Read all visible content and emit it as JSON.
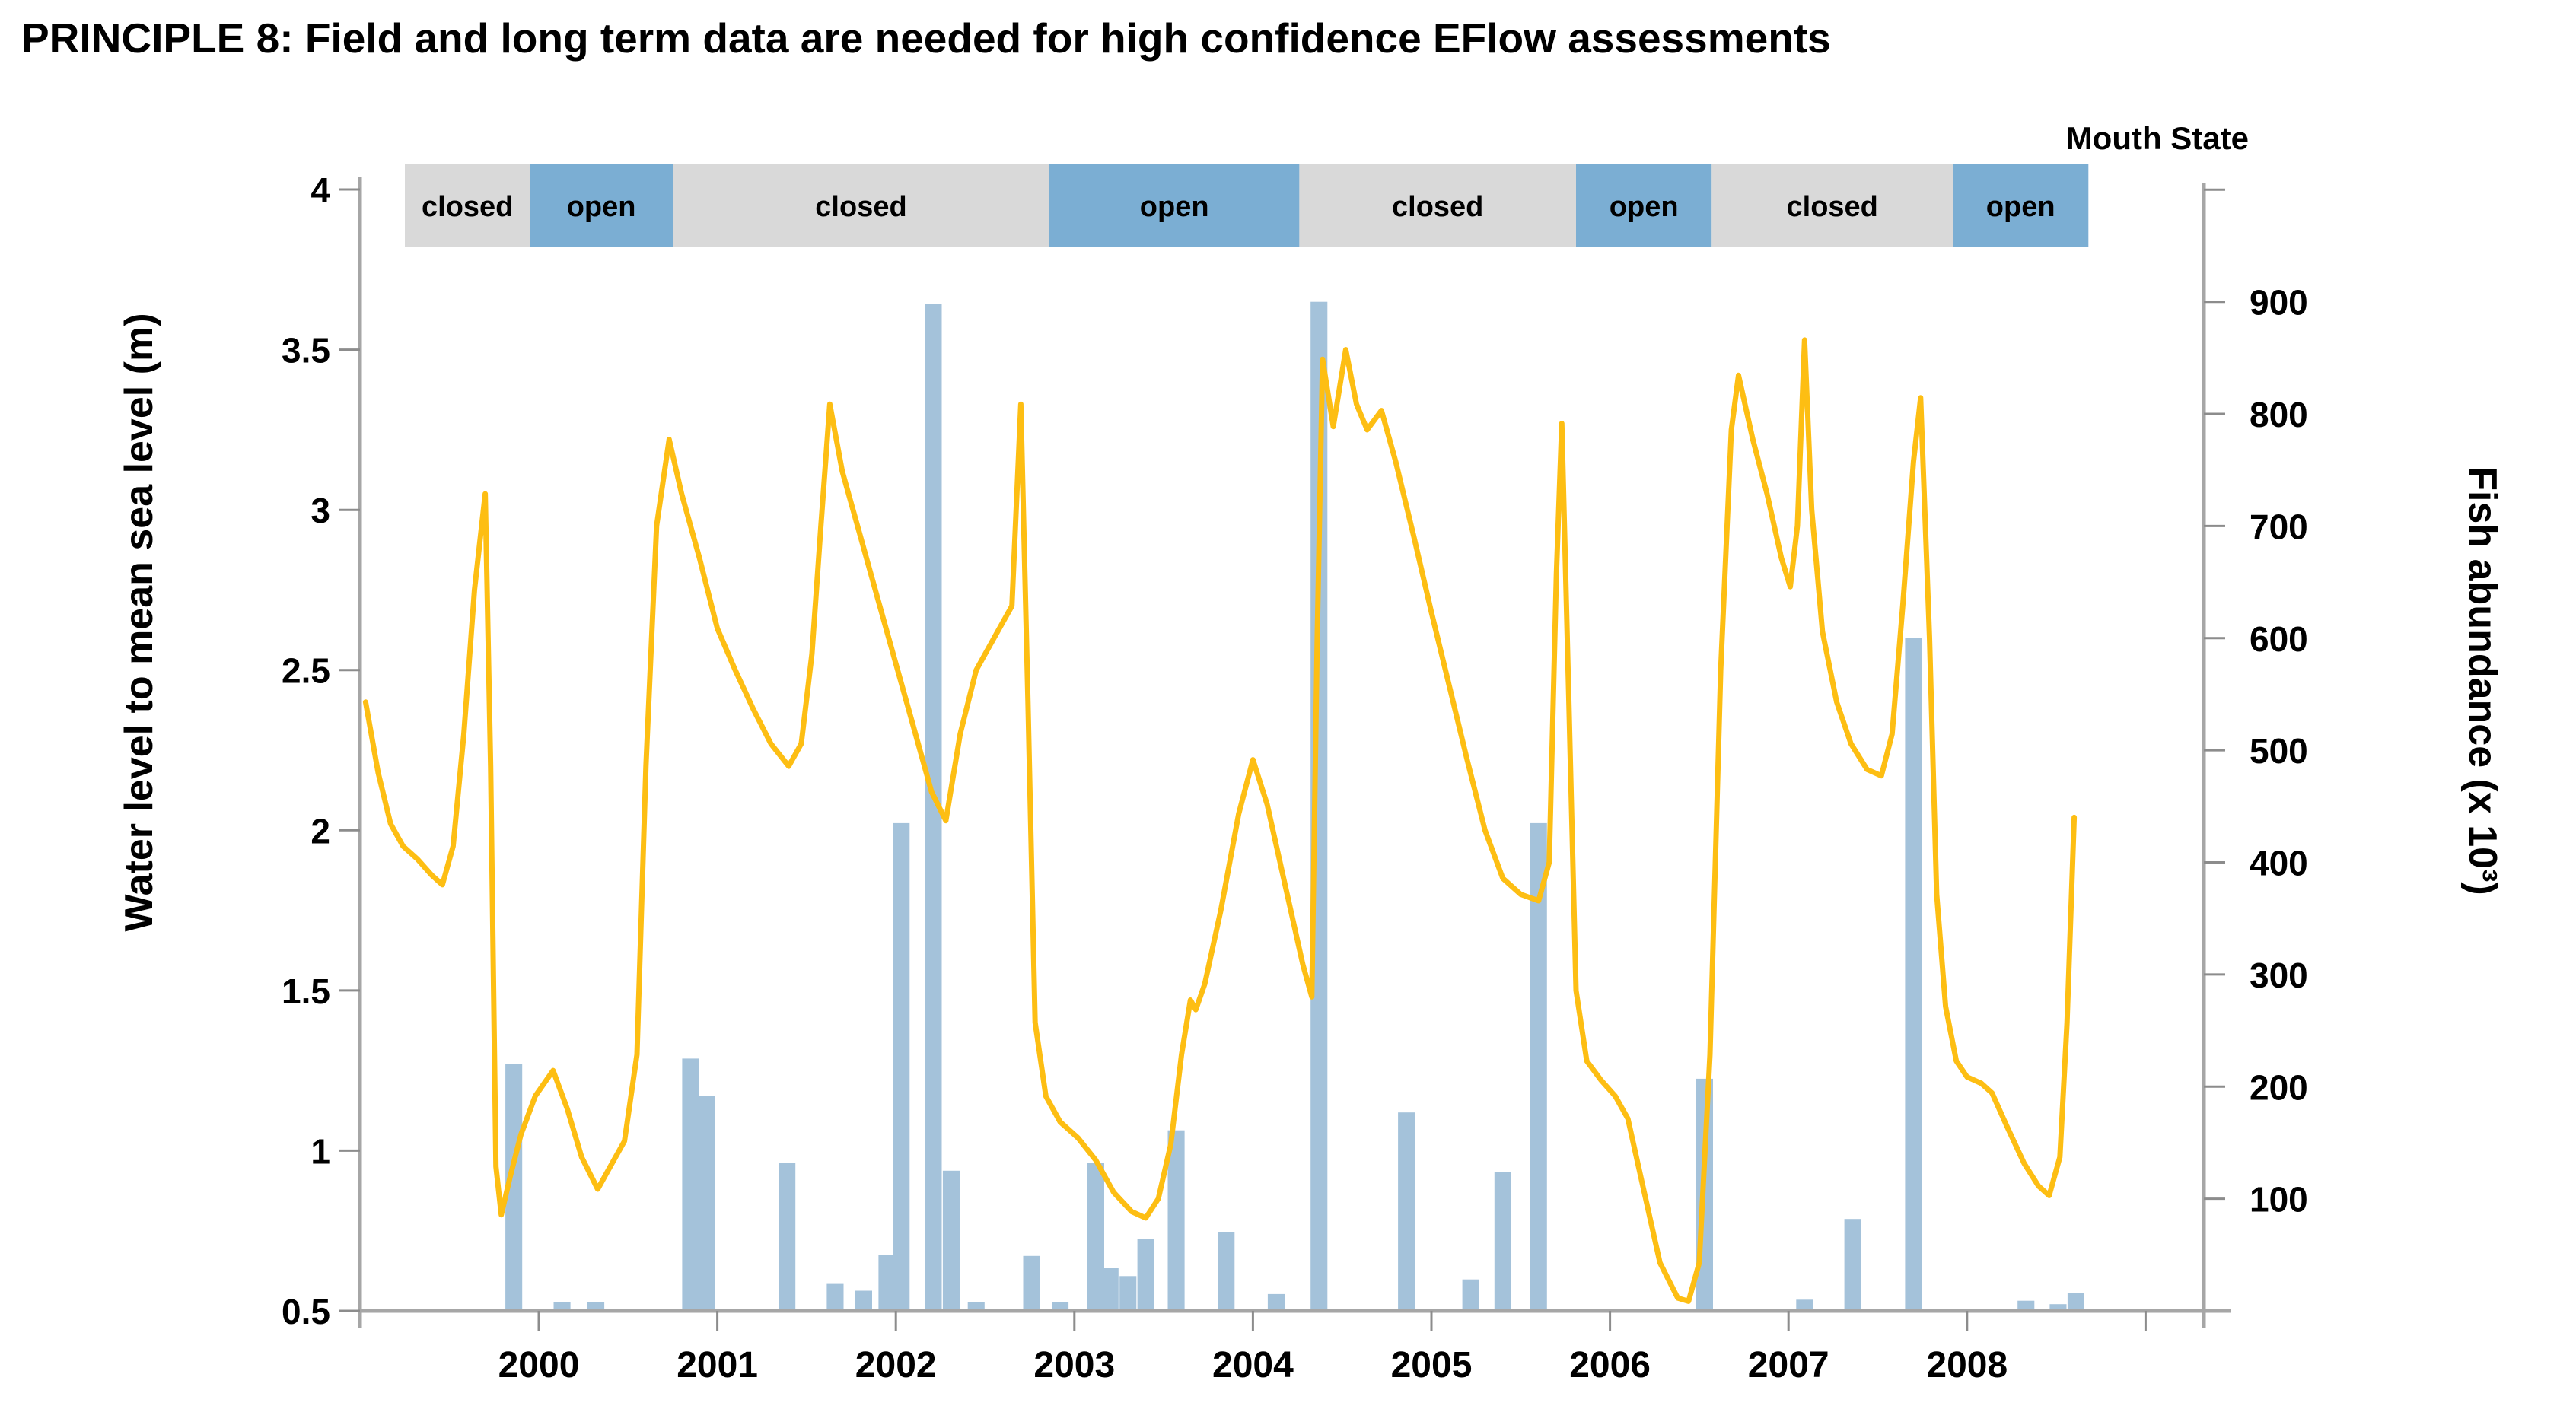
{
  "title": "PRINCIPLE 8: Field and long term data are needed for high confidence EFlow assessments",
  "mouth_state": {
    "label": "Mouth State",
    "segments": [
      {
        "state": "closed",
        "label": "closed",
        "from": 1999.25,
        "to": 1999.95
      },
      {
        "state": "open",
        "label": "open",
        "from": 1999.95,
        "to": 2000.75
      },
      {
        "state": "closed",
        "label": "closed",
        "from": 2000.75,
        "to": 2002.86
      },
      {
        "state": "open",
        "label": "open",
        "from": 2002.86,
        "to": 2004.26
      },
      {
        "state": "closed",
        "label": "closed",
        "from": 2004.26,
        "to": 2005.81
      },
      {
        "state": "open",
        "label": "open",
        "from": 2005.81,
        "to": 2006.57
      },
      {
        "state": "closed",
        "label": "closed",
        "from": 2006.57,
        "to": 2007.92
      },
      {
        "state": "open",
        "label": "open",
        "from": 2007.92,
        "to": 2008.68
      }
    ]
  },
  "chart_data": {
    "type": "line+bar",
    "title": "",
    "grid": false,
    "legend": "none",
    "x_axis": {
      "range": [
        1999.0,
        2009.35
      ],
      "ticks": [
        {
          "year": 2000,
          "label": "2000"
        },
        {
          "year": 2001,
          "label": "2001"
        },
        {
          "year": 2002,
          "label": "2002"
        },
        {
          "year": 2003,
          "label": "2003"
        },
        {
          "year": 2004,
          "label": "2004"
        },
        {
          "year": 2005,
          "label": "2005"
        },
        {
          "year": 2006,
          "label": "2006"
        },
        {
          "year": 2007,
          "label": "2007"
        },
        {
          "year": 2008,
          "label": "2008"
        },
        {
          "year": 2009,
          "label": ""
        }
      ]
    },
    "left_axis": {
      "label": "Water level to mean sea level (m)",
      "min": 0.5,
      "max": 4.0,
      "ticks": [
        {
          "v": 4,
          "label": "4"
        },
        {
          "v": 3.5,
          "label": "3.5"
        },
        {
          "v": 3,
          "label": "3"
        },
        {
          "v": 2.5,
          "label": "2.5"
        },
        {
          "v": 2,
          "label": "2"
        },
        {
          "v": 1.5,
          "label": "1.5"
        },
        {
          "v": 1,
          "label": "1"
        },
        {
          "v": 0.5,
          "label": "0.5"
        }
      ]
    },
    "right_axis": {
      "label": "Fish abundance (x 10³)",
      "min": 0,
      "max": 1000,
      "ticks": [
        {
          "v": 1000,
          "label": ""
        },
        {
          "v": 900,
          "label": "900"
        },
        {
          "v": 800,
          "label": "800"
        },
        {
          "v": 700,
          "label": "700"
        },
        {
          "v": 600,
          "label": "600"
        },
        {
          "v": 500,
          "label": "500"
        },
        {
          "v": 400,
          "label": "400"
        },
        {
          "v": 300,
          "label": "300"
        },
        {
          "v": 200,
          "label": "200"
        },
        {
          "v": 100,
          "label": "100"
        }
      ]
    },
    "series": [
      {
        "name": "Water level to mean sea level",
        "type": "line",
        "axis": "left",
        "color": "#FDBE13",
        "points": [
          [
            1999.03,
            2.4
          ],
          [
            1999.1,
            2.18
          ],
          [
            1999.17,
            2.02
          ],
          [
            1999.24,
            1.95
          ],
          [
            1999.32,
            1.91
          ],
          [
            1999.4,
            1.86
          ],
          [
            1999.46,
            1.83
          ],
          [
            1999.52,
            1.95
          ],
          [
            1999.58,
            2.3
          ],
          [
            1999.64,
            2.75
          ],
          [
            1999.7,
            3.05
          ],
          [
            1999.73,
            2.2
          ],
          [
            1999.76,
            0.95
          ],
          [
            1999.79,
            0.8
          ],
          [
            1999.84,
            0.92
          ],
          [
            1999.9,
            1.05
          ],
          [
            1999.98,
            1.17
          ],
          [
            2000.08,
            1.25
          ],
          [
            2000.16,
            1.13
          ],
          [
            2000.24,
            0.98
          ],
          [
            2000.33,
            0.88
          ],
          [
            2000.4,
            0.95
          ],
          [
            2000.48,
            1.03
          ],
          [
            2000.55,
            1.3
          ],
          [
            2000.6,
            2.2
          ],
          [
            2000.66,
            2.95
          ],
          [
            2000.73,
            3.22
          ],
          [
            2000.8,
            3.05
          ],
          [
            2000.9,
            2.85
          ],
          [
            2001.0,
            2.63
          ],
          [
            2001.1,
            2.5
          ],
          [
            2001.2,
            2.38
          ],
          [
            2001.3,
            2.27
          ],
          [
            2001.4,
            2.2
          ],
          [
            2001.47,
            2.27
          ],
          [
            2001.53,
            2.55
          ],
          [
            2001.58,
            2.95
          ],
          [
            2001.63,
            3.33
          ],
          [
            2001.7,
            3.12
          ],
          [
            2001.8,
            2.92
          ],
          [
            2001.9,
            2.72
          ],
          [
            2002.0,
            2.52
          ],
          [
            2002.1,
            2.32
          ],
          [
            2002.2,
            2.12
          ],
          [
            2002.28,
            2.03
          ],
          [
            2002.36,
            2.3
          ],
          [
            2002.45,
            2.5
          ],
          [
            2002.55,
            2.6
          ],
          [
            2002.65,
            2.7
          ],
          [
            2002.7,
            3.33
          ],
          [
            2002.74,
            2.4
          ],
          [
            2002.78,
            1.4
          ],
          [
            2002.84,
            1.17
          ],
          [
            2002.92,
            1.09
          ],
          [
            2003.02,
            1.04
          ],
          [
            2003.12,
            0.97
          ],
          [
            2003.22,
            0.87
          ],
          [
            2003.32,
            0.81
          ],
          [
            2003.4,
            0.79
          ],
          [
            2003.47,
            0.85
          ],
          [
            2003.54,
            1.02
          ],
          [
            2003.6,
            1.3
          ],
          [
            2003.65,
            1.47
          ],
          [
            2003.68,
            1.44
          ],
          [
            2003.73,
            1.52
          ],
          [
            2003.82,
            1.75
          ],
          [
            2003.92,
            2.05
          ],
          [
            2004.0,
            2.22
          ],
          [
            2004.08,
            2.08
          ],
          [
            2004.18,
            1.83
          ],
          [
            2004.28,
            1.58
          ],
          [
            2004.33,
            1.48
          ],
          [
            2004.36,
            2.6
          ],
          [
            2004.39,
            3.47
          ],
          [
            2004.45,
            3.26
          ],
          [
            2004.52,
            3.5
          ],
          [
            2004.58,
            3.33
          ],
          [
            2004.64,
            3.25
          ],
          [
            2004.72,
            3.31
          ],
          [
            2004.8,
            3.15
          ],
          [
            2004.9,
            2.92
          ],
          [
            2005.0,
            2.68
          ],
          [
            2005.1,
            2.45
          ],
          [
            2005.2,
            2.22
          ],
          [
            2005.3,
            2.0
          ],
          [
            2005.4,
            1.85
          ],
          [
            2005.5,
            1.8
          ],
          [
            2005.6,
            1.78
          ],
          [
            2005.66,
            1.9
          ],
          [
            2005.7,
            2.8
          ],
          [
            2005.73,
            3.27
          ],
          [
            2005.77,
            2.4
          ],
          [
            2005.81,
            1.5
          ],
          [
            2005.87,
            1.28
          ],
          [
            2005.95,
            1.22
          ],
          [
            2006.03,
            1.17
          ],
          [
            2006.1,
            1.1
          ],
          [
            2006.18,
            0.9
          ],
          [
            2006.28,
            0.65
          ],
          [
            2006.38,
            0.54
          ],
          [
            2006.44,
            0.53
          ],
          [
            2006.5,
            0.65
          ],
          [
            2006.56,
            1.3
          ],
          [
            2006.62,
            2.5
          ],
          [
            2006.68,
            3.25
          ],
          [
            2006.72,
            3.42
          ],
          [
            2006.8,
            3.22
          ],
          [
            2006.88,
            3.05
          ],
          [
            2006.96,
            2.85
          ],
          [
            2007.01,
            2.76
          ],
          [
            2007.05,
            2.95
          ],
          [
            2007.09,
            3.53
          ],
          [
            2007.13,
            3.0
          ],
          [
            2007.19,
            2.62
          ],
          [
            2007.27,
            2.4
          ],
          [
            2007.35,
            2.27
          ],
          [
            2007.44,
            2.19
          ],
          [
            2007.52,
            2.17
          ],
          [
            2007.58,
            2.3
          ],
          [
            2007.64,
            2.7
          ],
          [
            2007.7,
            3.15
          ],
          [
            2007.74,
            3.35
          ],
          [
            2007.79,
            2.6
          ],
          [
            2007.83,
            1.8
          ],
          [
            2007.88,
            1.45
          ],
          [
            2007.94,
            1.28
          ],
          [
            2008.0,
            1.23
          ],
          [
            2008.08,
            1.21
          ],
          [
            2008.14,
            1.18
          ],
          [
            2008.22,
            1.08
          ],
          [
            2008.32,
            0.96
          ],
          [
            2008.4,
            0.89
          ],
          [
            2008.46,
            0.86
          ],
          [
            2008.52,
            0.98
          ],
          [
            2008.56,
            1.4
          ],
          [
            2008.6,
            2.04
          ]
        ]
      },
      {
        "name": "Fish abundance",
        "type": "bar",
        "axis": "right",
        "color": "#A4C2DA",
        "bar_width_years": 0.094,
        "points": [
          [
            1999.86,
            220
          ],
          [
            2000.13,
            8
          ],
          [
            2000.32,
            8
          ],
          [
            2000.85,
            225
          ],
          [
            2000.94,
            192
          ],
          [
            2001.39,
            132
          ],
          [
            2001.66,
            24
          ],
          [
            2001.82,
            18
          ],
          [
            2001.95,
            50
          ],
          [
            2002.03,
            435
          ],
          [
            2002.21,
            898
          ],
          [
            2002.31,
            125
          ],
          [
            2002.45,
            8
          ],
          [
            2002.76,
            49
          ],
          [
            2002.92,
            8
          ],
          [
            2003.12,
            132
          ],
          [
            2003.2,
            38
          ],
          [
            2003.3,
            31
          ],
          [
            2003.4,
            64
          ],
          [
            2003.57,
            161
          ],
          [
            2003.85,
            70
          ],
          [
            2004.13,
            15
          ],
          [
            2004.37,
            900
          ],
          [
            2004.86,
            177
          ],
          [
            2005.22,
            28
          ],
          [
            2005.4,
            124
          ],
          [
            2005.6,
            435
          ],
          [
            2006.53,
            207
          ],
          [
            2007.09,
            10
          ],
          [
            2007.36,
            82
          ],
          [
            2007.7,
            600
          ],
          [
            2008.33,
            9
          ],
          [
            2008.51,
            6
          ],
          [
            2008.61,
            16
          ]
        ]
      }
    ]
  },
  "colors": {
    "line": "#FDBE13",
    "bar": "#A4C2DA",
    "band_open": "#7BAED3",
    "band_closed": "#D9D9D9",
    "axis": "#A6A6A6",
    "tick": "#8C8C8C",
    "text": "#000000"
  }
}
